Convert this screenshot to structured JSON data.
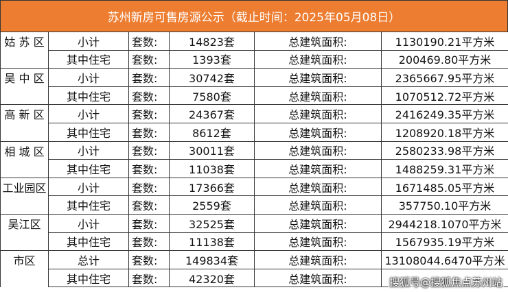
{
  "title": "苏州新房可售房源公示（截止时间：2025年05月08日）",
  "count_label": "套数:",
  "area_label": "总建筑面积:",
  "rows": [
    {
      "district": "姑 苏 区",
      "type": "小计",
      "count": "14823套",
      "area": "1130190.21平方米"
    },
    {
      "district": "",
      "type": "其中住宅",
      "count": "1393套",
      "area": "200469.80平方米"
    },
    {
      "district": "吴 中 区",
      "type": "小计",
      "count": "30742套",
      "area": "2365667.95平方米"
    },
    {
      "district": "",
      "type": "其中住宅",
      "count": "7580套",
      "area": "1070512.72平方米"
    },
    {
      "district": "高 新 区",
      "type": "小计",
      "count": "24367套",
      "area": "2416249.35平方米"
    },
    {
      "district": "",
      "type": "其中住宅",
      "count": "8612套",
      "area": "1208920.18平方米"
    },
    {
      "district": "相 城 区",
      "type": "小计",
      "count": "30011套",
      "area": "2580233.98平方米"
    },
    {
      "district": "",
      "type": "其中住宅",
      "count": "11038套",
      "area": "1488259.31平方米"
    },
    {
      "district": "工业园区",
      "type": "小计",
      "count": "17366套",
      "area": "1671485.05平方米"
    },
    {
      "district": "",
      "type": "其中住宅",
      "count": "2559套",
      "area": "357750.10平方米"
    },
    {
      "district": "吴江区",
      "type": "小计",
      "count": "32525套",
      "area": "2944218.1070平方米"
    },
    {
      "district": "",
      "type": "其中住宅",
      "count": "11138套",
      "area": "1567935.19平方米"
    },
    {
      "district": "市区",
      "type": "总计",
      "count": "149834套",
      "area": "13108044.6470平方米"
    },
    {
      "district": "",
      "type": "其中住宅",
      "count": "42320套",
      "area": ""
    }
  ],
  "watermark": "搜狐号@搜狐焦点苏州站"
}
